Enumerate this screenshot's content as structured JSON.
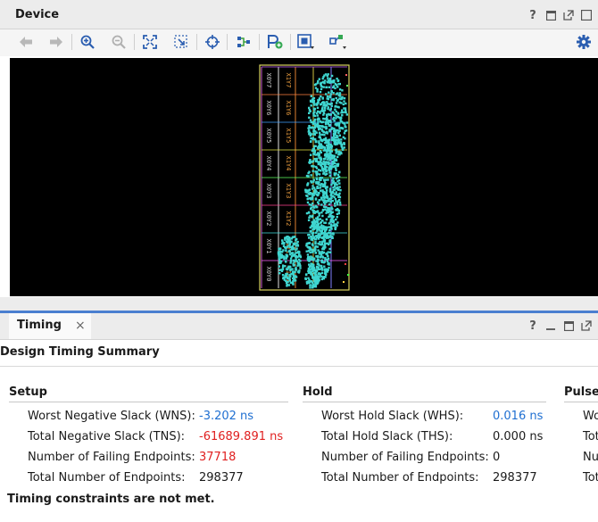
{
  "device_panel": {
    "title": "Device",
    "header_icons": [
      "help-icon",
      "restore-icon",
      "float-icon",
      "close-icon"
    ],
    "toolbar_icons": [
      "back-icon",
      "forward-icon",
      "zoom-in-icon",
      "zoom-out-icon",
      "fit-icon",
      "zoom-selection-icon",
      "center-icon",
      "route-icon",
      "add-pblock-icon",
      "draw-region-icon",
      "layers-icon",
      "settings-icon"
    ],
    "clock_regions": [
      [
        "X0Y7",
        "X1Y7"
      ],
      [
        "X0Y6",
        "X1Y6"
      ],
      [
        "X0Y5",
        "X1Y5"
      ],
      [
        "X0Y4",
        "X1Y4"
      ],
      [
        "X0Y3",
        "X1Y3"
      ],
      [
        "X0Y2",
        "X1Y2"
      ],
      [
        "X0Y1",
        "X1Y1"
      ],
      [
        "X0Y0",
        "X1Y0"
      ]
    ],
    "colors": {
      "background": "#000000",
      "placed_cells": "#3fd6d0",
      "region_border": "#d9d35f"
    }
  },
  "timing_panel": {
    "tab_label": "Timing",
    "summary_title": "Design Timing Summary",
    "setup": {
      "heading": "Setup",
      "rows": [
        {
          "label": "Worst Negative Slack (WNS):",
          "value": "-3.202 ns",
          "color": "#1f6fd1"
        },
        {
          "label": "Total Negative Slack (TNS):",
          "value": "-61689.891 ns",
          "color": "#e02020"
        },
        {
          "label": "Number of Failing Endpoints:",
          "value": "37718",
          "color": "#e02020"
        },
        {
          "label": "Total Number of Endpoints:",
          "value": "298377",
          "color": "#1a1a1a"
        }
      ]
    },
    "hold": {
      "heading": "Hold",
      "rows": [
        {
          "label": "Worst Hold Slack (WHS):",
          "value": "0.016 ns",
          "color": "#1f6fd1"
        },
        {
          "label": "Total Hold Slack (THS):",
          "value": "0.000 ns",
          "color": "#1a1a1a"
        },
        {
          "label": "Number of Failing Endpoints:",
          "value": "0",
          "color": "#1a1a1a"
        },
        {
          "label": "Total Number of Endpoints:",
          "value": "298377",
          "color": "#1a1a1a"
        }
      ]
    },
    "pulse": {
      "heading": "Pulse",
      "row_labels": [
        "Wo",
        "Tot",
        "Nu",
        "Tot"
      ]
    },
    "status_message": "Timing constraints are not met."
  }
}
